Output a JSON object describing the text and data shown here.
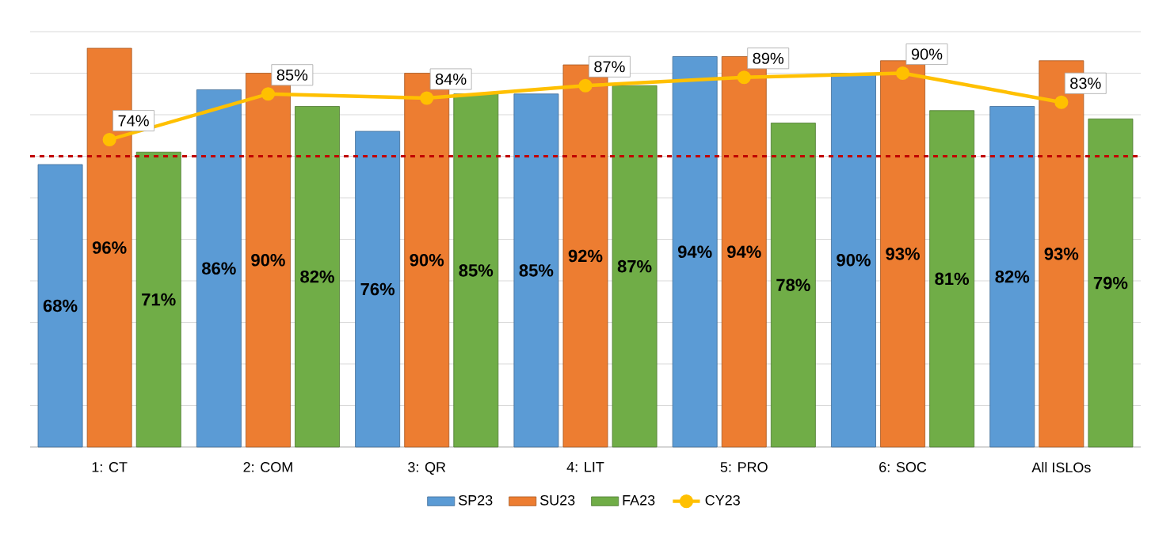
{
  "chart_data": {
    "type": "bar",
    "categories": [
      "1: CT",
      "2: COM",
      "3: QR",
      "4: LIT",
      "5: PRO",
      "6: SOC",
      "All ISLOs"
    ],
    "series": [
      {
        "name": "SP23",
        "color": "#5b9bd5",
        "values": [
          68,
          86,
          76,
          85,
          94,
          90,
          82
        ],
        "value_labels": [
          "68%",
          "86%",
          "76%",
          "85%",
          "94%",
          "90%",
          "82%"
        ]
      },
      {
        "name": "SU23",
        "color": "#ed7d31",
        "values": [
          96,
          90,
          90,
          92,
          94,
          93,
          93
        ],
        "value_labels": [
          "96%",
          "90%",
          "90%",
          "92%",
          "94%",
          "93%",
          "93%"
        ]
      },
      {
        "name": "FA23",
        "color": "#70ad47",
        "values": [
          71,
          82,
          85,
          87,
          78,
          81,
          79
        ],
        "value_labels": [
          "71%",
          "82%",
          "85%",
          "87%",
          "78%",
          "81%",
          "79%"
        ]
      },
      {
        "name": "CY23",
        "type": "line",
        "color": "#ffc000",
        "marker": "circle",
        "line_style": "solid",
        "values": [
          74,
          85,
          84,
          87,
          89,
          90,
          83
        ],
        "value_labels": [
          "74%",
          "85%",
          "84%",
          "87%",
          "89%",
          "90%",
          "83%"
        ]
      }
    ],
    "ylim": [
      0,
      100
    ],
    "yticks": [
      {
        "value": 0,
        "label": null
      },
      {
        "value": 10,
        "label": null
      },
      {
        "value": 20,
        "label": null
      },
      {
        "value": 30,
        "label": null
      },
      {
        "value": 40,
        "label": null
      },
      {
        "value": 50,
        "label": null
      },
      {
        "value": 60,
        "label": null
      },
      {
        "value": 70,
        "label": null
      },
      {
        "value": 80,
        "label": null
      },
      {
        "value": 90,
        "label": null
      },
      {
        "value": 100,
        "label": null
      }
    ],
    "grid": "y",
    "tick_labels": "x",
    "legend": "bottom",
    "ref_lines": [
      {
        "axis": "y",
        "value": 70,
        "color": "#c00000",
        "line_style": "dashed"
      }
    ]
  }
}
